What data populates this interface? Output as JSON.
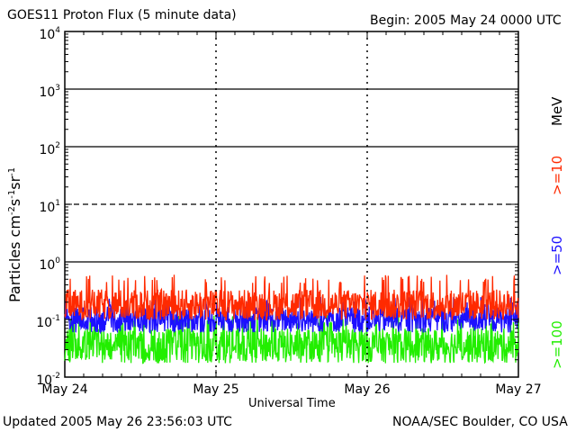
{
  "header": {
    "title": "GOES11 Proton Flux (5 minute data)",
    "begin": "Begin: 2005 May 24 0000 UTC"
  },
  "footer": {
    "updated": "Updated 2005 May 26 23:56:03 UTC",
    "credit": "NOAA/SEC Boulder, CO USA"
  },
  "legend": {
    "unit": "MeV",
    "items": [
      {
        "label": ">=10",
        "color": "#ff2a00"
      },
      {
        "label": ">=50",
        "color": "#1c10ff"
      },
      {
        "label": ">=100",
        "color": "#22ee00"
      }
    ]
  },
  "chart_data": {
    "type": "line",
    "title": "GOES11 Proton Flux (5 minute data)",
    "xlabel": "Universal Time",
    "ylabel": "Particles cm⁻²s⁻¹sr⁻¹",
    "ylabel_parts": [
      "Particles cm",
      "-2",
      "s",
      "-1",
      "sr",
      "-1"
    ],
    "yscale": "log",
    "ylim": [
      0.01,
      10000
    ],
    "y_ticks": [
      {
        "base": "10",
        "exp": "-2",
        "value": 0.01
      },
      {
        "base": "10",
        "exp": "-1",
        "value": 0.1
      },
      {
        "base": "10",
        "exp": "0",
        "value": 1
      },
      {
        "base": "10",
        "exp": "1",
        "value": 10
      },
      {
        "base": "10",
        "exp": "2",
        "value": 100
      },
      {
        "base": "10",
        "exp": "3",
        "value": 1000
      },
      {
        "base": "10",
        "exp": "4",
        "value": 10000
      }
    ],
    "x_ticks": [
      "May 24",
      "May 25",
      "May 26",
      "May 27"
    ],
    "xlim": [
      "2005-05-24 00:00",
      "2005-05-27 00:00"
    ],
    "threshold_lines": [
      {
        "value": 10,
        "style": "dashed"
      },
      {
        "value": 1,
        "style": "solid"
      },
      {
        "value": 100,
        "style": "solid"
      },
      {
        "value": 1000,
        "style": "solid"
      }
    ],
    "series": [
      {
        "name": ">=10 MeV",
        "color": "#ff2a00",
        "typical": 0.18,
        "range": [
          0.09,
          0.6
        ]
      },
      {
        "name": ">=50 MeV",
        "color": "#1c10ff",
        "typical": 0.1,
        "range": [
          0.05,
          0.25
        ]
      },
      {
        "name": ">=100 MeV",
        "color": "#22ee00",
        "typical": 0.035,
        "range": [
          0.014,
          0.12
        ]
      }
    ]
  }
}
